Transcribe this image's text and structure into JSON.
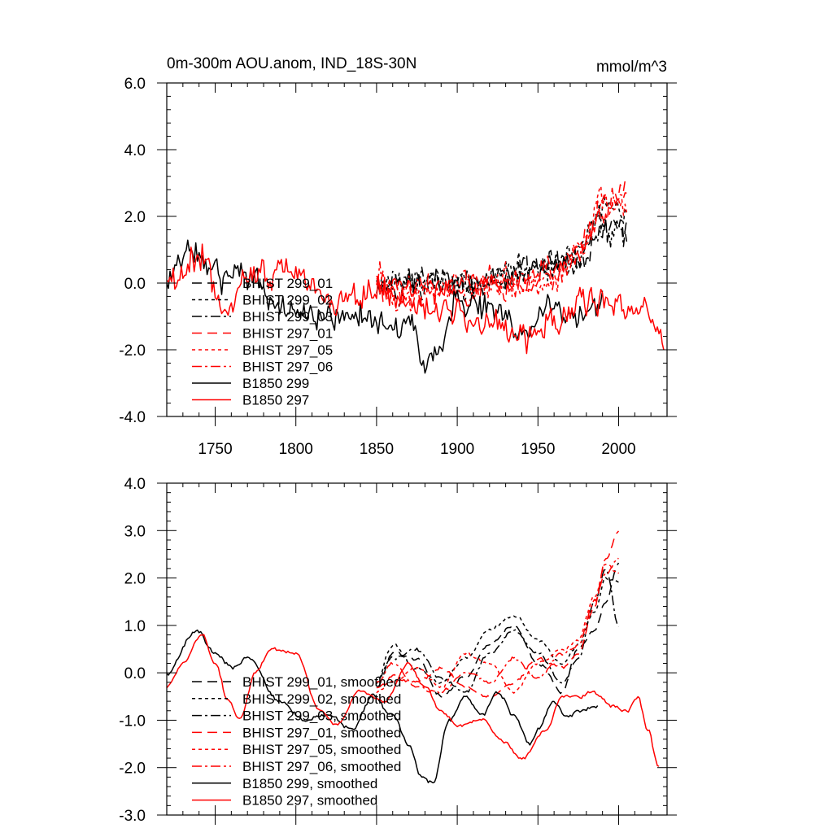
{
  "chart_data": [
    {
      "type": "line",
      "title": "0m-300m AOU.anom, IND_18S-30N",
      "units": "mmol/m^3",
      "xlim": [
        1720,
        2030
      ],
      "ylim": [
        -4.0,
        6.0
      ],
      "x_ticks": [
        1750,
        1800,
        1850,
        1900,
        1950,
        2000
      ],
      "x_tick_labels": [
        "1750",
        "1800",
        "1850",
        "1900",
        "1950",
        "2000"
      ],
      "y_ticks": [
        -4.0,
        -2.0,
        0.0,
        2.0,
        4.0,
        6.0
      ],
      "y_tick_labels": [
        "-4.0",
        "-2.0",
        "0.0",
        "2.0",
        "4.0",
        "6.0"
      ],
      "legend_position": "lower-left",
      "series": [
        {
          "name": "BHIST 299_01",
          "color": "#000000",
          "dash": "dashed",
          "x0": 1850,
          "x1": 2005,
          "ctrl_x": [
            1850,
            1880,
            1910,
            1940,
            1960,
            1975,
            1990,
            2005
          ],
          "ctrl_y": [
            -0.2,
            0.0,
            -0.3,
            0.3,
            0.5,
            0.6,
            1.8,
            1.9
          ],
          "noise": 1.0
        },
        {
          "name": "BHIST 299_02",
          "color": "#000000",
          "dash": "dotted",
          "x0": 1850,
          "x1": 2005,
          "ctrl_x": [
            1850,
            1880,
            1910,
            1940,
            1960,
            1975,
            1990,
            2005
          ],
          "ctrl_y": [
            -0.1,
            0.1,
            0.0,
            0.6,
            0.5,
            0.9,
            2.3,
            2.1
          ],
          "noise": 1.0
        },
        {
          "name": "BHIST 299_03",
          "color": "#000000",
          "dash": "dashdot",
          "x0": 1850,
          "x1": 2005,
          "ctrl_x": [
            1850,
            1880,
            1910,
            1940,
            1960,
            1975,
            1990,
            2005
          ],
          "ctrl_y": [
            0.0,
            0.2,
            -0.1,
            0.2,
            0.6,
            0.5,
            1.6,
            1.4
          ],
          "noise": 1.0
        },
        {
          "name": "BHIST 297_01",
          "color": "#ff0000",
          "dash": "dashed",
          "x0": 1850,
          "x1": 2005,
          "ctrl_x": [
            1850,
            1880,
            1910,
            1940,
            1960,
            1975,
            1990,
            2005
          ],
          "ctrl_y": [
            0.0,
            -0.2,
            0.0,
            -0.1,
            0.3,
            0.8,
            2.2,
            2.9
          ],
          "noise": 1.0
        },
        {
          "name": "BHIST 297_05",
          "color": "#ff0000",
          "dash": "dotted",
          "x0": 1850,
          "x1": 2005,
          "ctrl_x": [
            1850,
            1880,
            1910,
            1940,
            1960,
            1975,
            1990,
            2005
          ],
          "ctrl_y": [
            -0.1,
            -0.3,
            0.1,
            0.0,
            0.1,
            0.9,
            2.4,
            2.2
          ],
          "noise": 1.0
        },
        {
          "name": "BHIST 297_06",
          "color": "#ff0000",
          "dash": "dashdot",
          "x0": 1850,
          "x1": 2005,
          "ctrl_x": [
            1850,
            1880,
            1910,
            1940,
            1960,
            1975,
            1990,
            2005
          ],
          "ctrl_y": [
            0.1,
            -0.1,
            -0.2,
            0.1,
            0.2,
            0.8,
            2.3,
            2.5
          ],
          "noise": 1.0
        },
        {
          "name": "B1850 299",
          "color": "#000000",
          "dash": "solid",
          "x0": 1720,
          "x1": 1990,
          "ctrl_x": [
            1720,
            1738,
            1750,
            1770,
            1790,
            1810,
            1840,
            1870,
            1885,
            1900,
            1920,
            1940,
            1960,
            1975,
            1990
          ],
          "ctrl_y": [
            0.0,
            0.9,
            0.2,
            0.2,
            -0.8,
            -1.0,
            -1.0,
            -1.3,
            -2.3,
            -0.5,
            -0.8,
            -1.6,
            -0.6,
            -1.0,
            -0.6
          ],
          "noise": 1.0
        },
        {
          "name": "B1850 297",
          "color": "#ff0000",
          "dash": "solid",
          "x0": 1720,
          "x1": 2028,
          "ctrl_x": [
            1720,
            1742,
            1758,
            1775,
            1800,
            1820,
            1850,
            1880,
            1900,
            1920,
            1940,
            1960,
            1980,
            2000,
            2015,
            2028
          ],
          "ctrl_y": [
            -0.2,
            0.8,
            -1.0,
            0.4,
            0.3,
            -0.7,
            -0.3,
            -0.6,
            -1.0,
            -1.2,
            -1.8,
            -1.2,
            -0.5,
            -0.7,
            -0.6,
            -2.0
          ],
          "noise": 1.0
        }
      ]
    },
    {
      "type": "line",
      "xlim": [
        1720,
        2030
      ],
      "ylim": [
        -3.0,
        4.0
      ],
      "x_ticks": [
        1750,
        1800,
        1850,
        1900,
        1950,
        2000
      ],
      "y_ticks": [
        -3.0,
        -2.0,
        -1.0,
        0.0,
        1.0,
        2.0,
        3.0,
        4.0
      ],
      "y_tick_labels": [
        "-3.0",
        "-2.0",
        "-1.0",
        "0.0",
        "1.0",
        "2.0",
        "3.0",
        "4.0"
      ],
      "legend_position": "lower-left",
      "series": [
        {
          "name": "BHIST 299_01, smoothed",
          "color": "#000000",
          "dash": "dashed",
          "x0": 1850,
          "x1": 2000,
          "ctrl_x": [
            1850,
            1860,
            1875,
            1890,
            1905,
            1920,
            1935,
            1950,
            1965,
            1975,
            1985,
            1992,
            2000
          ],
          "ctrl_y": [
            -0.3,
            0.4,
            0.3,
            -0.5,
            -0.1,
            0.6,
            1.0,
            0.2,
            -0.4,
            0.5,
            0.9,
            1.5,
            2.3
          ],
          "noise": 0.1
        },
        {
          "name": "BHIST 299_02, smoothed",
          "color": "#000000",
          "dash": "dotted",
          "x0": 1850,
          "x1": 2000,
          "ctrl_x": [
            1850,
            1860,
            1875,
            1890,
            1905,
            1920,
            1935,
            1950,
            1965,
            1975,
            1985,
            1992,
            2000
          ],
          "ctrl_y": [
            -0.2,
            0.6,
            0.1,
            -0.2,
            0.3,
            0.9,
            1.2,
            0.7,
            0.2,
            0.6,
            1.3,
            2.0,
            1.9
          ],
          "noise": 0.1
        },
        {
          "name": "BHIST 299_03, smoothed",
          "color": "#000000",
          "dash": "dashdot",
          "x0": 1850,
          "x1": 2000,
          "ctrl_x": [
            1850,
            1860,
            1875,
            1890,
            1905,
            1920,
            1935,
            1950,
            1965,
            1975,
            1985,
            1992,
            2000
          ],
          "ctrl_y": [
            -0.1,
            0.3,
            0.5,
            -0.1,
            -0.4,
            0.4,
            0.9,
            0.4,
            -0.2,
            0.3,
            1.5,
            2.2,
            1.0
          ],
          "noise": 0.1
        },
        {
          "name": "BHIST 297_01, smoothed",
          "color": "#ff0000",
          "dash": "dashed",
          "x0": 1850,
          "x1": 2000,
          "ctrl_x": [
            1850,
            1860,
            1875,
            1890,
            1905,
            1920,
            1935,
            1950,
            1965,
            1975,
            1985,
            1992,
            2000
          ],
          "ctrl_y": [
            -0.3,
            -0.1,
            -0.2,
            0.1,
            -0.3,
            -0.5,
            -0.2,
            0.3,
            0.1,
            0.4,
            1.4,
            2.4,
            3.0
          ],
          "noise": 0.1
        },
        {
          "name": "BHIST 297_05, smoothed",
          "color": "#ff0000",
          "dash": "dotted",
          "x0": 1850,
          "x1": 2000,
          "ctrl_x": [
            1850,
            1860,
            1875,
            1890,
            1905,
            1920,
            1935,
            1950,
            1965,
            1975,
            1985,
            1992,
            2000
          ],
          "ctrl_y": [
            -0.4,
            -0.2,
            0.1,
            -0.3,
            0.4,
            0.2,
            -0.4,
            0.2,
            0.5,
            0.7,
            1.6,
            2.3,
            2.1
          ],
          "noise": 0.1
        },
        {
          "name": "BHIST 297_06, smoothed",
          "color": "#ff0000",
          "dash": "dashdot",
          "x0": 1850,
          "x1": 2000,
          "ctrl_x": [
            1850,
            1860,
            1875,
            1890,
            1905,
            1920,
            1935,
            1950,
            1965,
            1975,
            1985,
            1992,
            2000
          ],
          "ctrl_y": [
            -0.2,
            0.2,
            -0.3,
            -0.4,
            0.0,
            -0.2,
            0.3,
            -0.1,
            0.4,
            0.6,
            1.5,
            2.1,
            2.4
          ],
          "noise": 0.1
        },
        {
          "name": "B1850 299, smoothed",
          "color": "#000000",
          "dash": "solid",
          "x0": 1720,
          "x1": 1987,
          "ctrl_x": [
            1720,
            1738,
            1750,
            1762,
            1770,
            1790,
            1805,
            1820,
            1835,
            1848,
            1860,
            1870,
            1878,
            1885,
            1895,
            1905,
            1915,
            1925,
            1935,
            1945,
            1950,
            1960,
            1968,
            1978,
            1987
          ],
          "ctrl_y": [
            0.0,
            0.9,
            0.4,
            0.1,
            0.3,
            -0.6,
            -1.0,
            -0.9,
            -1.2,
            -0.5,
            -0.9,
            -1.5,
            -2.2,
            -2.3,
            -1.0,
            -0.5,
            -0.9,
            -0.4,
            -0.9,
            -1.5,
            -1.2,
            -0.6,
            -0.9,
            -0.8,
            -0.7
          ],
          "noise": 0.12
        },
        {
          "name": "B1850 297, smoothed",
          "color": "#ff0000",
          "dash": "solid",
          "x0": 1720,
          "x1": 2025,
          "ctrl_x": [
            1720,
            1730,
            1742,
            1750,
            1758,
            1765,
            1775,
            1785,
            1800,
            1815,
            1825,
            1840,
            1855,
            1870,
            1880,
            1890,
            1900,
            1915,
            1930,
            1940,
            1955,
            1965,
            1975,
            1985,
            1995,
            2005,
            2012,
            2018,
            2025
          ],
          "ctrl_y": [
            -0.3,
            0.2,
            0.8,
            0.2,
            -0.6,
            -1.0,
            0.0,
            0.5,
            0.4,
            -0.8,
            -1.1,
            -0.4,
            -0.6,
            0.2,
            -0.3,
            -0.8,
            -1.1,
            -1.0,
            -1.5,
            -1.8,
            -1.2,
            -0.5,
            -0.5,
            -0.4,
            -0.7,
            -0.8,
            -0.5,
            -1.2,
            -2.0
          ],
          "noise": 0.1
        }
      ]
    }
  ]
}
